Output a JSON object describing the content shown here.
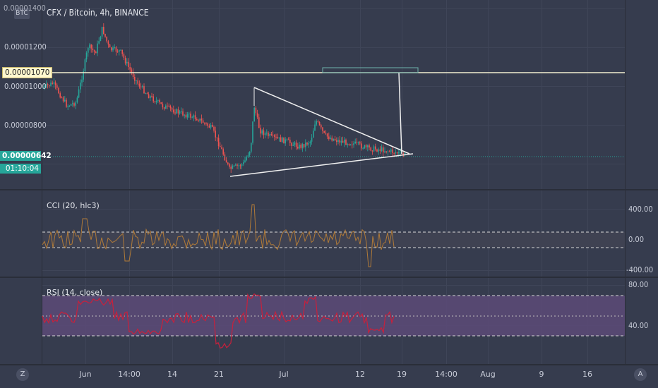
{
  "header": {
    "badge": "BTC",
    "title": "CFX / Bitcoin, 4h, BINANCE",
    "top_price_partial": "0.00001400"
  },
  "price_axis": {
    "labels": [
      "0.00001200",
      "0.00001000",
      "0.00000800"
    ],
    "resistance_tag": "0.00001070",
    "current_price_tag": "0.00000642",
    "countdown_tag": "01:10:04"
  },
  "cci_pane": {
    "legend": "CCI (20, hlc3)",
    "labels": [
      "400.00",
      "0.00",
      "-400.00"
    ]
  },
  "rsi_pane": {
    "legend": "RSI (14, close)",
    "labels": [
      "80.00",
      "40.00"
    ]
  },
  "time_axis": {
    "labels": [
      "Jun",
      "14:00",
      "14",
      "21",
      "Jul",
      "12",
      "19",
      "14:00",
      "Aug",
      "9",
      "16"
    ]
  },
  "controls": {
    "left_button": "Z",
    "right_button": "A"
  },
  "colors": {
    "background": "#363c4e",
    "candle_up": "#26a69a",
    "candle_down": "#ef5350",
    "cci_line": "#b07a38",
    "rsi_line": "#c8203c",
    "rsi_band": "#5c4a78",
    "resistance_line": "#f2efcf",
    "current_line": "#26a69a"
  }
}
